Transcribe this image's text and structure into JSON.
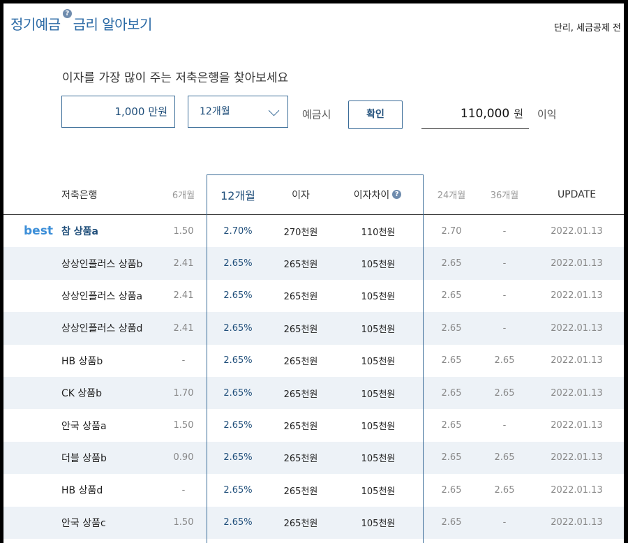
{
  "header": {
    "title_part1": "정기예금",
    "title_part2": "금리 알아보기",
    "help_icon": "question-circle-icon",
    "note": "단리, 세금공제 전"
  },
  "calculator": {
    "subtitle": "이자를 가장 많이 주는 저축은행을 찾아보세요",
    "amount_value": "1,000",
    "amount_unit": "만원",
    "period_selected": "12개월",
    "deposit_label": "예금시",
    "confirm_label": "확인",
    "result_value": "110,000",
    "result_unit": "원",
    "interest_label": "이익"
  },
  "table": {
    "headers": {
      "bank": "저축은행",
      "m6": "6개월",
      "m12": "12개월",
      "interest": "이자",
      "diff": "이자차이",
      "m24": "24개월",
      "m36": "36개월",
      "update": "UPDATE"
    },
    "best_label": "best",
    "rows": [
      {
        "name": "참 상품a",
        "m6": "1.50",
        "m12": "2.70%",
        "interest": "270천원",
        "diff": "110천원",
        "m24": "2.70",
        "m36": "-",
        "update": "2022.01.13"
      },
      {
        "name": "상상인플러스 상품b",
        "m6": "2.41",
        "m12": "2.65%",
        "interest": "265천원",
        "diff": "105천원",
        "m24": "2.65",
        "m36": "-",
        "update": "2022.01.13"
      },
      {
        "name": "상상인플러스 상품a",
        "m6": "2.41",
        "m12": "2.65%",
        "interest": "265천원",
        "diff": "105천원",
        "m24": "2.65",
        "m36": "-",
        "update": "2022.01.13"
      },
      {
        "name": "상상인플러스 상품d",
        "m6": "2.41",
        "m12": "2.65%",
        "interest": "265천원",
        "diff": "105천원",
        "m24": "2.65",
        "m36": "-",
        "update": "2022.01.13"
      },
      {
        "name": "HB 상품b",
        "m6": "-",
        "m12": "2.65%",
        "interest": "265천원",
        "diff": "105천원",
        "m24": "2.65",
        "m36": "2.65",
        "update": "2022.01.13"
      },
      {
        "name": "CK 상품b",
        "m6": "1.70",
        "m12": "2.65%",
        "interest": "265천원",
        "diff": "105천원",
        "m24": "2.65",
        "m36": "2.65",
        "update": "2022.01.13"
      },
      {
        "name": "안국 상품a",
        "m6": "1.50",
        "m12": "2.65%",
        "interest": "265천원",
        "diff": "105천원",
        "m24": "2.65",
        "m36": "-",
        "update": "2022.01.13"
      },
      {
        "name": "더블 상품b",
        "m6": "0.90",
        "m12": "2.65%",
        "interest": "265천원",
        "diff": "105천원",
        "m24": "2.65",
        "m36": "2.65",
        "update": "2022.01.13"
      },
      {
        "name": "HB 상품d",
        "m6": "-",
        "m12": "2.65%",
        "interest": "265천원",
        "diff": "105천원",
        "m24": "2.65",
        "m36": "2.65",
        "update": "2022.01.13"
      },
      {
        "name": "안국 상품c",
        "m6": "1.50",
        "m12": "2.65%",
        "interest": "265천원",
        "diff": "105천원",
        "m24": "2.65",
        "m36": "-",
        "update": "2022.01.13"
      }
    ]
  }
}
